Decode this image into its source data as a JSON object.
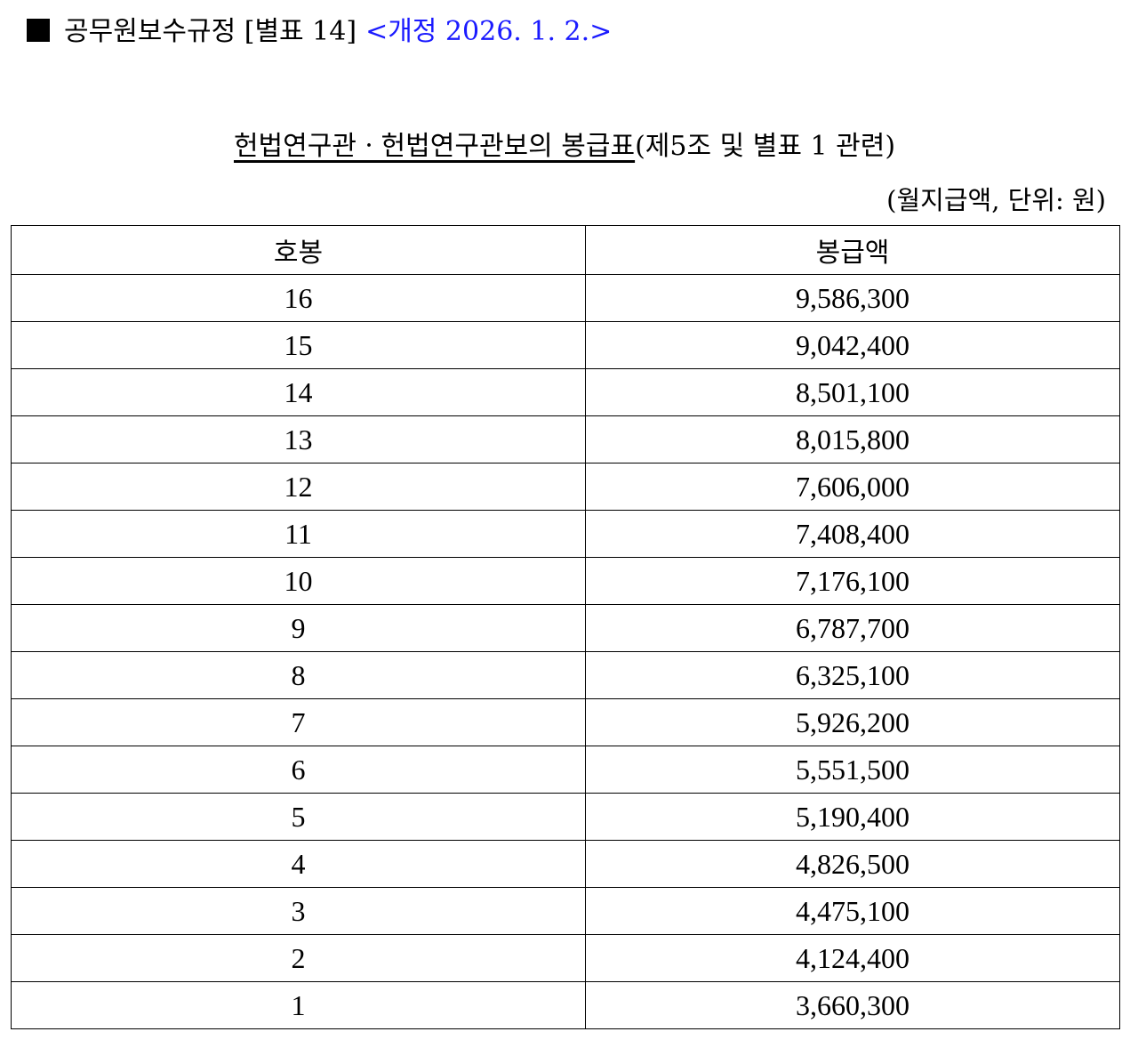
{
  "header": {
    "title": "공무원보수규정 [별표 14]",
    "amendment": "<개정 2026. 1. 2.>"
  },
  "table_title": {
    "main": "헌법연구관ㆍ헌법연구관보의 봉급표",
    "suffix": "(제5조 및 별표 1 관련)"
  },
  "unit_note": "(월지급액, 단위: 원)",
  "table": {
    "columns": [
      "호봉",
      "봉급액"
    ],
    "rows": [
      [
        "16",
        "9,586,300"
      ],
      [
        "15",
        "9,042,400"
      ],
      [
        "14",
        "8,501,100"
      ],
      [
        "13",
        "8,015,800"
      ],
      [
        "12",
        "7,606,000"
      ],
      [
        "11",
        "7,408,400"
      ],
      [
        "10",
        "7,176,100"
      ],
      [
        "9",
        "6,787,700"
      ],
      [
        "8",
        "6,325,100"
      ],
      [
        "7",
        "5,926,200"
      ],
      [
        "6",
        "5,551,500"
      ],
      [
        "5",
        "5,190,400"
      ],
      [
        "4",
        "4,826,500"
      ],
      [
        "3",
        "4,475,100"
      ],
      [
        "2",
        "4,124,400"
      ],
      [
        "1",
        "3,660,300"
      ]
    ]
  }
}
